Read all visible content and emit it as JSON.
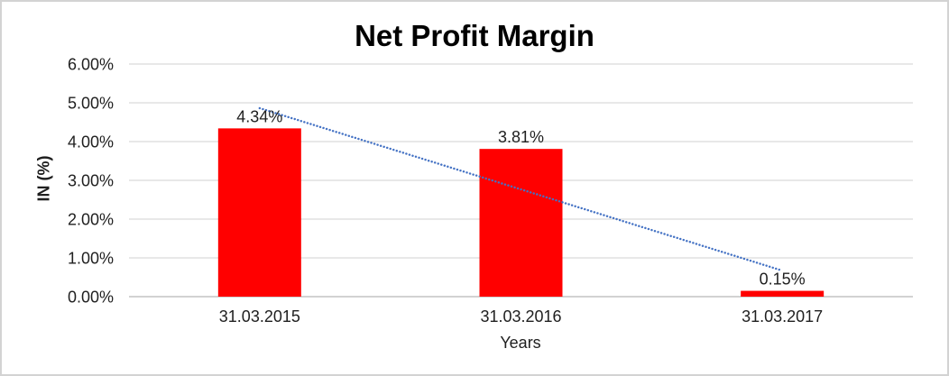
{
  "window": {
    "background": "#FFFFFF",
    "border_color": "#D3D3D3"
  },
  "chart_data": {
    "type": "bar",
    "title": "Net Profit Margin",
    "xlabel": "Years",
    "ylabel": "IN (%)",
    "categories": [
      "31.03.2015",
      "31.03.2016",
      "31.03.2017"
    ],
    "values": [
      4.34,
      3.81,
      0.15
    ],
    "data_labels": [
      "4.34%",
      "3.81%",
      "0.15%"
    ],
    "ylim": [
      0,
      6
    ],
    "yticks": [
      0,
      1,
      2,
      3,
      4,
      5,
      6
    ],
    "ytick_labels": [
      "0.00%",
      "1.00%",
      "2.00%",
      "3.00%",
      "4.00%",
      "5.00%",
      "6.00%"
    ],
    "grid": true,
    "legend_position": "none",
    "bar_color": "#FF0000",
    "gridline_color": "#D9D9D9",
    "axis_line_color": "#D2D2D2",
    "text_color": "#1F1F1F",
    "title_color": "#000000",
    "trendline": {
      "type": "linear",
      "style": "dotted",
      "color": "#4472C4"
    }
  }
}
